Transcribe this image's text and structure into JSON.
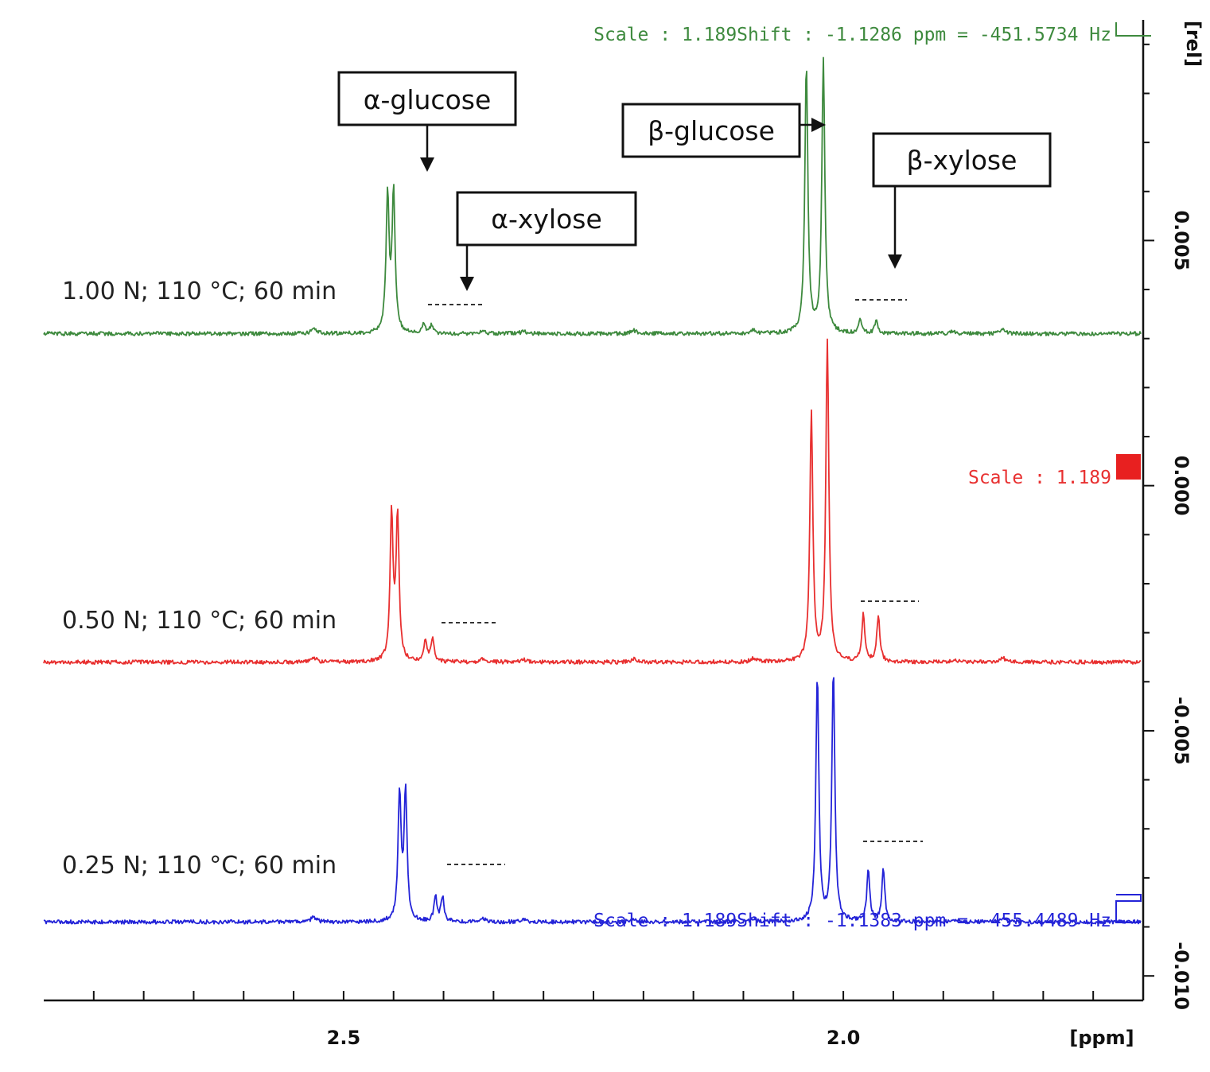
{
  "chart_data": {
    "type": "line",
    "title": "",
    "xlabel": "[ppm]",
    "ylabel": "[rel]",
    "x_ticks": [
      2.5,
      2.0
    ],
    "x_range": [
      2.8,
      1.7
    ],
    "y_ticks": [
      0.005,
      0.0,
      -0.005,
      -0.01
    ],
    "y_tick_labels": [
      "0.005",
      "0.000",
      "-0.005",
      "-0.010"
    ],
    "y_range": [
      -0.0105,
      0.0095
    ],
    "grid": false,
    "series": [
      {
        "name": "1.00 N; 110 °C; 60 min",
        "color": "#3e8a3e",
        "baseline": 0.0031,
        "scale_text": "Scale : 1.189Shift : -1.1286 ppm = -451.5734 Hz",
        "peaks": [
          {
            "ppm": 2.456,
            "height": 0.00282
          },
          {
            "ppm": 2.45,
            "height": 0.00283
          },
          {
            "ppm": 2.42,
            "height": 0.00018
          },
          {
            "ppm": 2.412,
            "height": 0.00018
          },
          {
            "ppm": 2.037,
            "height": 0.00545
          },
          {
            "ppm": 2.02,
            "height": 0.00555
          },
          {
            "ppm": 1.983,
            "height": 0.00028
          },
          {
            "ppm": 1.967,
            "height": 0.00028
          }
        ]
      },
      {
        "name": "0.50 N; 110 °C; 60 min",
        "color": "#e83030",
        "baseline": -0.0036,
        "scale_text": "Scale : 1.189",
        "peaks": [
          {
            "ppm": 2.452,
            "height": 0.00295
          },
          {
            "ppm": 2.446,
            "height": 0.00295
          },
          {
            "ppm": 2.418,
            "height": 0.00045
          },
          {
            "ppm": 2.411,
            "height": 0.00045
          },
          {
            "ppm": 2.032,
            "height": 0.00505
          },
          {
            "ppm": 2.016,
            "height": 0.00655
          },
          {
            "ppm": 1.98,
            "height": 0.00095
          },
          {
            "ppm": 1.965,
            "height": 0.00095
          }
        ]
      },
      {
        "name": "0.25 N; 110 °C; 60 min",
        "color": "#2424d8",
        "baseline": -0.0089,
        "scale_text": "Scale : 1.189Shift : -1.1383 ppm = -455.4489 Hz",
        "peaks": [
          {
            "ppm": 2.444,
            "height": 0.0026
          },
          {
            "ppm": 2.438,
            "height": 0.0026
          },
          {
            "ppm": 2.408,
            "height": 0.0005
          },
          {
            "ppm": 2.401,
            "height": 0.0005
          },
          {
            "ppm": 2.026,
            "height": 0.005
          },
          {
            "ppm": 2.01,
            "height": 0.0051
          },
          {
            "ppm": 1.975,
            "height": 0.00105
          },
          {
            "ppm": 1.96,
            "height": 0.00105
          }
        ]
      }
    ],
    "annotations": [
      {
        "text": "α-glucose"
      },
      {
        "text": "α-xylose"
      },
      {
        "text": "β-glucose"
      },
      {
        "text": "β-xylose"
      }
    ]
  }
}
